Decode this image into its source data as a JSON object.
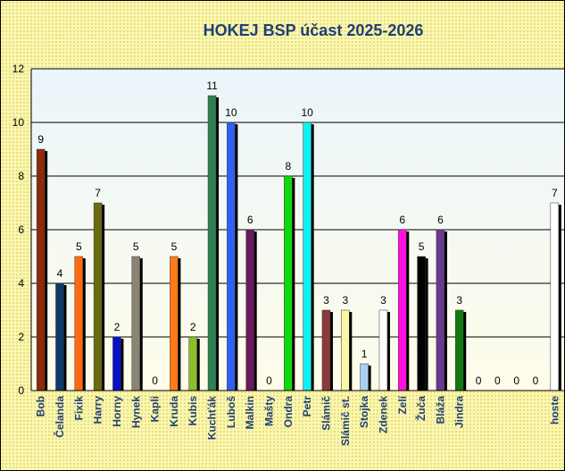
{
  "chart_data": {
    "type": "bar",
    "title": "HOKEJ BSP účast 2025-2026",
    "ylim": [
      0,
      12
    ],
    "yticks": [
      0,
      2,
      4,
      6,
      8,
      10,
      12
    ],
    "grid": true,
    "categories": [
      "Bob",
      "Čelanda",
      "Fixik",
      "Harry",
      "Horny",
      "Hynek",
      "Kapli",
      "Kruda",
      "Kubis",
      "Kuchťák",
      "Luboš",
      "Malkin",
      "Mašty",
      "Ondra",
      "Petr",
      "Slámič",
      "Slámič st.",
      "Stojka",
      "Zdenek",
      "Zelí",
      "Žuča",
      "Bláža",
      "Jindra",
      "",
      "",
      "",
      "",
      "hoste"
    ],
    "values": [
      9,
      4,
      5,
      7,
      2,
      5,
      0,
      5,
      2,
      11,
      10,
      6,
      0,
      8,
      10,
      3,
      3,
      1,
      3,
      6,
      5,
      6,
      3,
      0,
      0,
      0,
      0,
      7
    ],
    "colors": [
      "#8b2b0c",
      "#0d3a67",
      "#ff6a10",
      "#6b6b12",
      "#0a10c8",
      "#8a8474",
      "#999999",
      "#ff7a18",
      "#8cbd2a",
      "#2f8050",
      "#3060f0",
      "#6b1a60",
      "#999999",
      "#10d810",
      "#10f0f0",
      "#8b3a3a",
      "#fbf7a8",
      "#a8d0f0",
      "#ffffff",
      "#ff10e0",
      "#000000",
      "#6a3a90",
      "#127a12",
      "#999999",
      "#999999",
      "#999999",
      "#999999",
      "#ffffff"
    ]
  }
}
